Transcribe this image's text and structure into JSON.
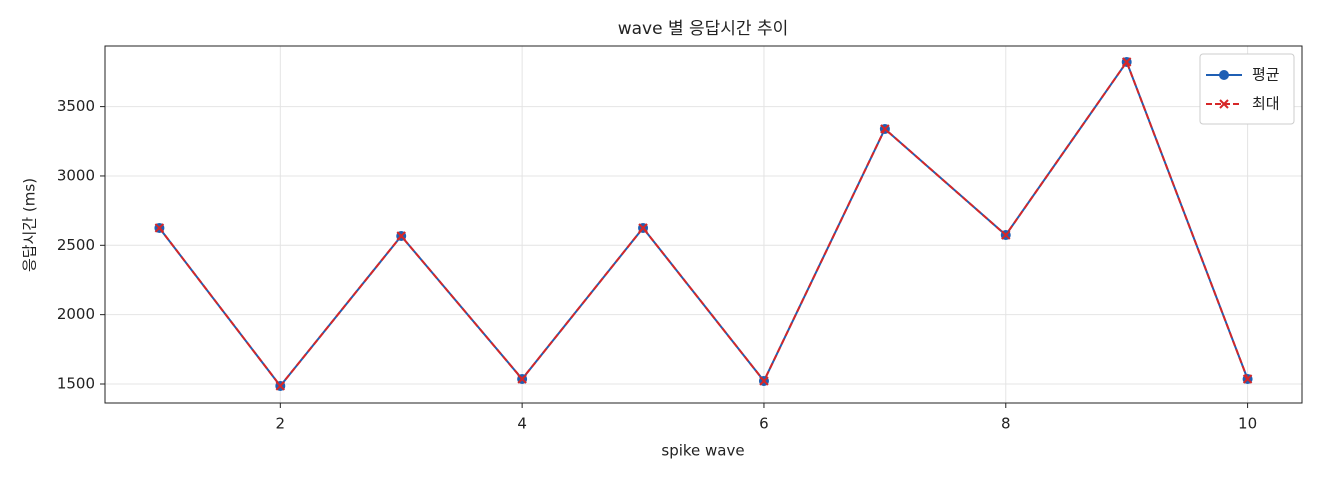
{
  "chart_data": {
    "type": "line",
    "title": "wave 별 응답시간 추이",
    "xlabel": "spike wave",
    "ylabel": "응답시간 (ms)",
    "x": [
      1,
      2,
      3,
      4,
      5,
      6,
      7,
      8,
      9,
      10
    ],
    "series": [
      {
        "name": "평균",
        "color": "#1f5fb4",
        "marker": "o",
        "dash": false,
        "values": [
          2625,
          1486,
          2567,
          1536,
          2625,
          1522,
          3339,
          2574,
          3822,
          1536
        ]
      },
      {
        "name": "최대",
        "color": "#d62728",
        "marker": "x",
        "dash": true,
        "values": [
          2625,
          1486,
          2567,
          1536,
          2625,
          1522,
          3339,
          2574,
          3822,
          1536
        ]
      }
    ],
    "xlim": [
      0.55,
      10.45
    ],
    "ylim": [
      1363,
      3937
    ],
    "xticks": [
      2,
      4,
      6,
      8,
      10
    ],
    "yticks": [
      1500,
      2000,
      2500,
      3000,
      3500
    ],
    "grid": true,
    "legend": "upper right"
  }
}
